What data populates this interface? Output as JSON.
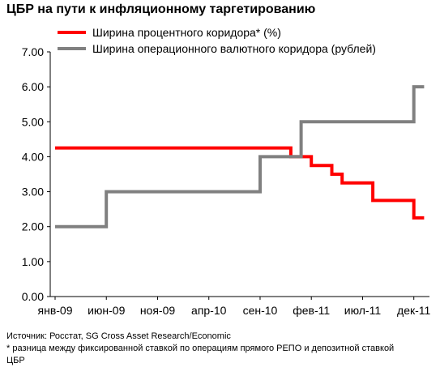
{
  "title": "ЦБР на пути к инфляционному таргетированию",
  "footer": {
    "source": "Источник: Росстат, SG Cross Asset Research/Economic",
    "note_line1": "* разница между фиксированной ставкой по операциям прямого РЕПО и депозитной ставкой",
    "note_line2": "ЦБР"
  },
  "chart_data": {
    "type": "line",
    "step": true,
    "title": "ЦБР на пути к инфляционному таргетированию",
    "xlabel": "",
    "ylabel": "",
    "ylim": [
      0,
      7
    ],
    "y_ticks": [
      "0.00",
      "1.00",
      "2.00",
      "3.00",
      "4.00",
      "5.00",
      "6.00",
      "7.00"
    ],
    "x_ticks": [
      "янв-09",
      "июн-09",
      "ноя-09",
      "апр-10",
      "сен-10",
      "фев-11",
      "июл-11",
      "дек-11"
    ],
    "x_range": [
      "2009-01",
      "2012-02"
    ],
    "grid": false,
    "legend_position": "top-left",
    "series": [
      {
        "name": "Ширина процентного коридора* (%)",
        "color": "#ff0000",
        "points": [
          [
            "2009-01",
            4.25
          ],
          [
            "2010-12",
            4.25
          ],
          [
            "2010-12",
            4.0
          ],
          [
            "2011-02",
            4.0
          ],
          [
            "2011-02",
            3.75
          ],
          [
            "2011-04",
            3.75
          ],
          [
            "2011-04",
            3.5
          ],
          [
            "2011-05",
            3.5
          ],
          [
            "2011-05",
            3.25
          ],
          [
            "2011-08",
            3.25
          ],
          [
            "2011-08",
            2.75
          ],
          [
            "2011-12",
            2.75
          ],
          [
            "2011-12",
            2.25
          ],
          [
            "2012-01",
            2.25
          ]
        ]
      },
      {
        "name": "Ширина операционного валютного коридора (рублей)",
        "color": "#808080",
        "points": [
          [
            "2009-01",
            2.0
          ],
          [
            "2009-06",
            2.0
          ],
          [
            "2009-06",
            3.0
          ],
          [
            "2010-09",
            3.0
          ],
          [
            "2010-09",
            4.0
          ],
          [
            "2011-01",
            4.0
          ],
          [
            "2011-01",
            5.0
          ],
          [
            "2011-12",
            5.0
          ],
          [
            "2011-12",
            6.0
          ],
          [
            "2012-01",
            6.0
          ]
        ]
      }
    ]
  }
}
